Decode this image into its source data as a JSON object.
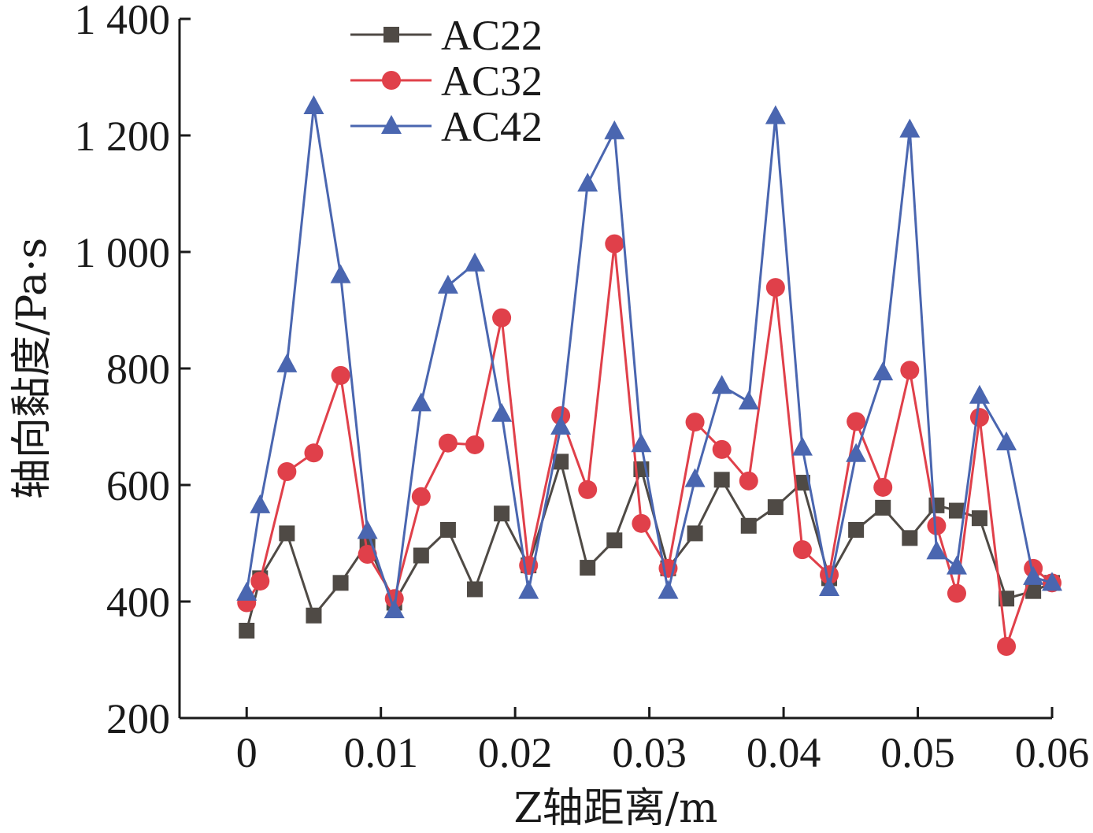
{
  "chart_data": {
    "type": "line",
    "xlabel": "Z轴距离/m",
    "ylabel": "轴向黏度/Pa·s",
    "xlim": [
      -0.005,
      0.06
    ],
    "ylim": [
      200,
      1400
    ],
    "xticks": [
      0,
      0.01,
      0.02,
      0.03,
      0.04,
      0.05,
      0.06
    ],
    "xtick_labels": [
      "0",
      "0.01",
      "0.02",
      "0.03",
      "0.04",
      "0.05",
      "0.06"
    ],
    "yticks": [
      200,
      400,
      600,
      800,
      1000,
      1200,
      1400
    ],
    "ytick_labels": [
      "200",
      "400",
      "600",
      "800",
      "1 000",
      "1 200",
      "1 400"
    ],
    "grid": false,
    "legend_position": "top-left",
    "series": [
      {
        "name": "AC22",
        "color": "#4f4a45",
        "marker": "square",
        "x": [
          0,
          0.001,
          0.003,
          0.005,
          0.007,
          0.009,
          0.011,
          0.013,
          0.015,
          0.017,
          0.019,
          0.021,
          0.0234,
          0.0254,
          0.0274,
          0.0294,
          0.0314,
          0.0334,
          0.0354,
          0.0374,
          0.0394,
          0.0414,
          0.0434,
          0.0454,
          0.0474,
          0.0494,
          0.0514,
          0.0529,
          0.0546,
          0.0566,
          0.0586,
          0.06
        ],
        "y": [
          350,
          440,
          517,
          376,
          432,
          500,
          398,
          479,
          523,
          421,
          551,
          462,
          640,
          458,
          505,
          627,
          457,
          517,
          609,
          530,
          562,
          604,
          440,
          523,
          561,
          509,
          565,
          556,
          543,
          405,
          418,
          432
        ]
      },
      {
        "name": "AC32",
        "color": "#e0404a",
        "marker": "circle",
        "x": [
          0,
          0.001,
          0.003,
          0.005,
          0.007,
          0.009,
          0.011,
          0.013,
          0.015,
          0.017,
          0.019,
          0.021,
          0.0234,
          0.0254,
          0.0274,
          0.0294,
          0.0314,
          0.0334,
          0.0354,
          0.0374,
          0.0394,
          0.0414,
          0.0434,
          0.0454,
          0.0474,
          0.0494,
          0.0514,
          0.0529,
          0.0546,
          0.0566,
          0.0586,
          0.06
        ],
        "y": [
          398,
          435,
          623,
          655,
          788,
          481,
          405,
          580,
          672,
          669,
          887,
          462,
          719,
          592,
          1014,
          534,
          457,
          708,
          661,
          607,
          939,
          489,
          446,
          709,
          596,
          797,
          530,
          414,
          716,
          323,
          457,
          432
        ]
      },
      {
        "name": "AC42",
        "color": "#4a66b0",
        "marker": "triangle",
        "x": [
          0,
          0.001,
          0.003,
          0.005,
          0.007,
          0.009,
          0.011,
          0.013,
          0.015,
          0.017,
          0.019,
          0.021,
          0.0234,
          0.0254,
          0.0274,
          0.0294,
          0.0314,
          0.0334,
          0.0354,
          0.0374,
          0.0394,
          0.0414,
          0.0434,
          0.0454,
          0.0474,
          0.0494,
          0.0514,
          0.0529,
          0.0546,
          0.0566,
          0.0586,
          0.06
        ],
        "y": [
          415,
          565,
          807,
          1250,
          960,
          521,
          385,
          740,
          942,
          980,
          722,
          418,
          700,
          1117,
          1207,
          670,
          418,
          610,
          770,
          743,
          1233,
          664,
          423,
          653,
          793,
          1210,
          486,
          460,
          753,
          673,
          442,
          432
        ]
      }
    ]
  }
}
